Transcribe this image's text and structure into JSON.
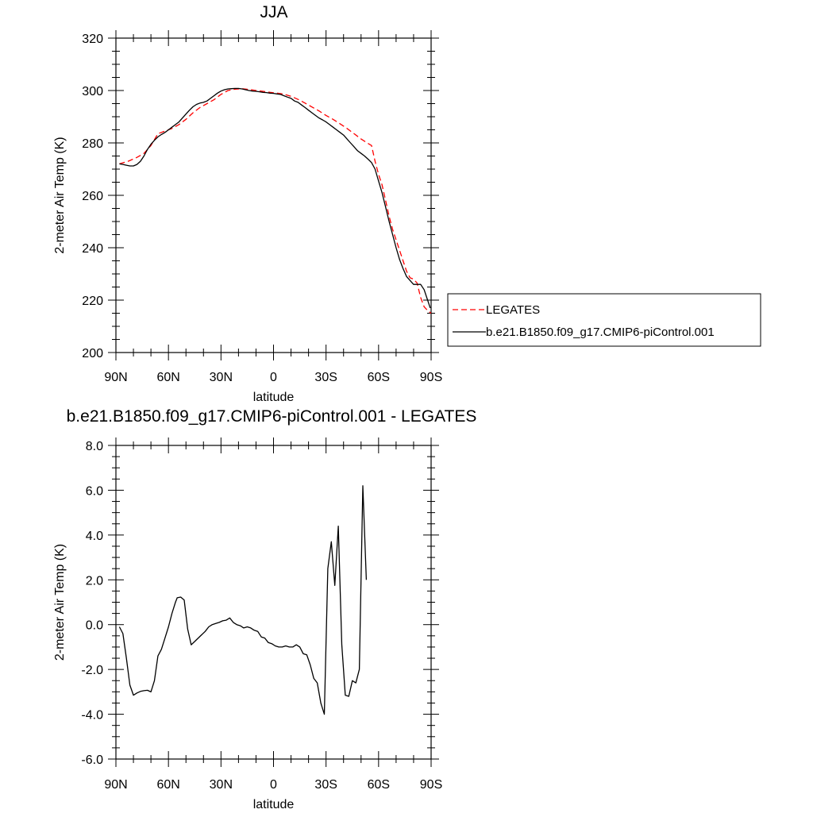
{
  "chart_data": [
    {
      "type": "line",
      "title": "JJA",
      "xlabel": "latitude",
      "ylabel": "2-meter Air Temp (K)",
      "xlim": [
        90,
        -90
      ],
      "ylim": [
        200,
        320
      ],
      "x_ticks": [
        90,
        60,
        30,
        0,
        -30,
        -60,
        -90
      ],
      "x_tick_labels": [
        "90N",
        "60N",
        "30N",
        "0",
        "30S",
        "60S",
        "90S"
      ],
      "y_ticks": [
        200,
        220,
        240,
        260,
        280,
        300,
        320
      ],
      "y_tick_labels": [
        "200",
        "220",
        "240",
        "260",
        "280",
        "300",
        "320"
      ],
      "grid": false,
      "legend_position": "outside-right",
      "series": [
        {
          "name": "LEGATES",
          "color": "#ff0000",
          "style": "dashed",
          "points": [
            [
              88,
              272
            ],
            [
              83,
              273
            ],
            [
              78,
              274.5
            ],
            [
              74,
              276
            ],
            [
              70,
              279
            ],
            [
              66,
              283.5
            ],
            [
              62,
              284.5
            ],
            [
              58,
              285.5
            ],
            [
              54,
              287
            ],
            [
              50,
              289
            ],
            [
              46,
              291.5
            ],
            [
              42,
              293.5
            ],
            [
              38,
              295
            ],
            [
              34,
              296.5
            ],
            [
              30,
              298.5
            ],
            [
              26,
              300
            ],
            [
              22,
              300.5
            ],
            [
              18,
              300.7
            ],
            [
              14,
              300.4
            ],
            [
              10,
              300
            ],
            [
              6,
              299.7
            ],
            [
              2,
              299.3
            ],
            [
              -2,
              299
            ],
            [
              -6,
              298.6
            ],
            [
              -10,
              297.8
            ],
            [
              -14,
              296.6
            ],
            [
              -18,
              295.2
            ],
            [
              -22,
              293.7
            ],
            [
              -26,
              292.2
            ],
            [
              -30,
              290.5
            ],
            [
              -34,
              289
            ],
            [
              -38,
              287.3
            ],
            [
              -42,
              285.5
            ],
            [
              -46,
              283.5
            ],
            [
              -50,
              281.5
            ],
            [
              -54,
              279.8
            ],
            [
              -56,
              279
            ],
            [
              -58,
              273
            ],
            [
              -60,
              268
            ],
            [
              -62,
              264
            ],
            [
              -64,
              258
            ],
            [
              -66,
              252
            ],
            [
              -68,
              247
            ],
            [
              -70,
              243
            ],
            [
              -72,
              239
            ],
            [
              -74,
              235
            ],
            [
              -76,
              231
            ],
            [
              -78,
              228.5
            ],
            [
              -80,
              228
            ],
            [
              -82,
              226.5
            ],
            [
              -84,
              221
            ],
            [
              -86,
              217.5
            ],
            [
              -88,
              216
            ],
            [
              -90,
              215
            ]
          ]
        },
        {
          "name": "b.e21.B1850.f09_g17.CMIP6-piControl.001",
          "color": "#000000",
          "style": "solid",
          "points": [
            [
              88,
              272
            ],
            [
              86,
              271.8
            ],
            [
              84,
              271.5
            ],
            [
              82,
              271.2
            ],
            [
              80,
              271.2
            ],
            [
              78,
              271.8
            ],
            [
              76,
              273
            ],
            [
              74,
              275
            ],
            [
              72,
              277.5
            ],
            [
              70,
              279.5
            ],
            [
              68,
              281
            ],
            [
              66,
              282.3
            ],
            [
              64,
              283.2
            ],
            [
              62,
              284
            ],
            [
              60,
              285
            ],
            [
              58,
              286
            ],
            [
              56,
              287
            ],
            [
              54,
              288
            ],
            [
              52,
              289.5
            ],
            [
              50,
              291
            ],
            [
              48,
              292.5
            ],
            [
              46,
              293.8
            ],
            [
              44,
              294.7
            ],
            [
              42,
              295.2
            ],
            [
              40,
              295.5
            ],
            [
              38,
              296
            ],
            [
              36,
              297
            ],
            [
              34,
              298
            ],
            [
              32,
              299
            ],
            [
              30,
              299.8
            ],
            [
              28,
              300.3
            ],
            [
              26,
              300.6
            ],
            [
              24,
              300.7
            ],
            [
              22,
              300.8
            ],
            [
              20,
              300.8
            ],
            [
              18,
              300.6
            ],
            [
              16,
              300.3
            ],
            [
              14,
              300
            ],
            [
              12,
              299.8
            ],
            [
              10,
              299.7
            ],
            [
              8,
              299.5
            ],
            [
              6,
              299.3
            ],
            [
              4,
              299.2
            ],
            [
              2,
              299
            ],
            [
              0,
              298.9
            ],
            [
              -2,
              298.7
            ],
            [
              -4,
              298.5
            ],
            [
              -6,
              298
            ],
            [
              -8,
              297.5
            ],
            [
              -10,
              297
            ],
            [
              -12,
              296
            ],
            [
              -14,
              295.5
            ],
            [
              -16,
              294.5
            ],
            [
              -18,
              293.5
            ],
            [
              -20,
              292.5
            ],
            [
              -22,
              291.5
            ],
            [
              -24,
              290.5
            ],
            [
              -26,
              289.5
            ],
            [
              -28,
              288.8
            ],
            [
              -30,
              288
            ],
            [
              -32,
              287
            ],
            [
              -34,
              286
            ],
            [
              -36,
              285
            ],
            [
              -38,
              284
            ],
            [
              -40,
              283
            ],
            [
              -42,
              281.5
            ],
            [
              -44,
              280
            ],
            [
              -46,
              278.5
            ],
            [
              -48,
              277
            ],
            [
              -50,
              276
            ],
            [
              -52,
              275
            ],
            [
              -54,
              273.8
            ],
            [
              -56,
              272.5
            ],
            [
              -58,
              270
            ],
            [
              -60,
              265.5
            ],
            [
              -62,
              261
            ],
            [
              -64,
              255.5
            ],
            [
              -66,
              250
            ],
            [
              -68,
              245
            ],
            [
              -70,
              240
            ],
            [
              -72,
              235.5
            ],
            [
              -74,
              232
            ],
            [
              -76,
              229
            ],
            [
              -78,
              227.5
            ],
            [
              -80,
              226
            ],
            [
              -82,
              226
            ],
            [
              -84,
              226
            ],
            [
              -86,
              224
            ],
            [
              -88,
              220
            ],
            [
              -89.5,
              217
            ]
          ]
        }
      ]
    },
    {
      "type": "line",
      "title": "b.e21.B1850.f09_g17.CMIP6-piControl.001 - LEGATES",
      "xlabel": "latitude",
      "ylabel": "2-meter Air Temp (K)",
      "xlim": [
        90,
        -90
      ],
      "ylim": [
        -6,
        8
      ],
      "x_ticks": [
        90,
        60,
        30,
        0,
        -30,
        -60,
        -90
      ],
      "x_tick_labels": [
        "90N",
        "60N",
        "30N",
        "0",
        "30S",
        "60S",
        "90S"
      ],
      "y_ticks": [
        -6,
        -4,
        -2,
        0,
        2,
        4,
        6,
        8
      ],
      "y_tick_labels": [
        "-6.0",
        "-4.0",
        "-2.0",
        "0.0",
        "2.0",
        "4.0",
        "6.0",
        "8.0"
      ],
      "grid": false,
      "series": [
        {
          "color": "#000000",
          "style": "solid",
          "points": [
            [
              88,
              -0.1
            ],
            [
              86,
              -0.4
            ],
            [
              84,
              -1.5
            ],
            [
              82,
              -2.7
            ],
            [
              80,
              -3.15
            ],
            [
              78,
              -3.05
            ],
            [
              76,
              -2.98
            ],
            [
              74,
              -2.95
            ],
            [
              72,
              -2.93
            ],
            [
              70,
              -3.0
            ],
            [
              68,
              -2.5
            ],
            [
              66,
              -1.4
            ],
            [
              64,
              -1.1
            ],
            [
              62,
              -0.6
            ],
            [
              60,
              -0.1
            ],
            [
              58,
              0.5
            ],
            [
              56,
              1.0
            ],
            [
              55,
              1.2
            ],
            [
              53,
              1.23
            ],
            [
              51,
              1.1
            ],
            [
              49,
              -0.2
            ],
            [
              47,
              -0.9
            ],
            [
              45,
              -0.75
            ],
            [
              43,
              -0.6
            ],
            [
              41,
              -0.45
            ],
            [
              39,
              -0.3
            ],
            [
              37,
              -0.1
            ],
            [
              35,
              0.0
            ],
            [
              33,
              0.05
            ],
            [
              31,
              0.1
            ],
            [
              29,
              0.17
            ],
            [
              27,
              0.2
            ],
            [
              25,
              0.3
            ],
            [
              23,
              0.1
            ],
            [
              21,
              0.0
            ],
            [
              19,
              -0.05
            ],
            [
              17,
              -0.15
            ],
            [
              15,
              -0.1
            ],
            [
              13,
              -0.15
            ],
            [
              11,
              -0.25
            ],
            [
              9,
              -0.3
            ],
            [
              7,
              -0.55
            ],
            [
              5,
              -0.6
            ],
            [
              3,
              -0.8
            ],
            [
              1,
              -0.85
            ],
            [
              -1,
              -0.95
            ],
            [
              -3,
              -1.0
            ],
            [
              -5,
              -1.0
            ],
            [
              -7,
              -0.95
            ],
            [
              -9,
              -1.0
            ],
            [
              -11,
              -1.0
            ],
            [
              -13,
              -0.9
            ],
            [
              -15,
              -1.0
            ],
            [
              -17,
              -1.3
            ],
            [
              -19,
              -1.35
            ],
            [
              -21,
              -1.8
            ],
            [
              -23,
              -2.4
            ],
            [
              -25,
              -2.6
            ],
            [
              -27,
              -3.5
            ],
            [
              -29,
              -4.0
            ],
            [
              -31,
              2.5
            ],
            [
              -33,
              3.7
            ],
            [
              -35,
              1.75
            ],
            [
              -37,
              4.4
            ],
            [
              -39,
              -0.9
            ],
            [
              -41,
              -3.15
            ],
            [
              -43,
              -3.2
            ],
            [
              -45,
              -2.5
            ],
            [
              -47,
              -2.6
            ],
            [
              -49,
              -2.0
            ],
            [
              -51,
              6.2
            ],
            [
              -53,
              2.0
            ]
          ]
        }
      ]
    }
  ]
}
